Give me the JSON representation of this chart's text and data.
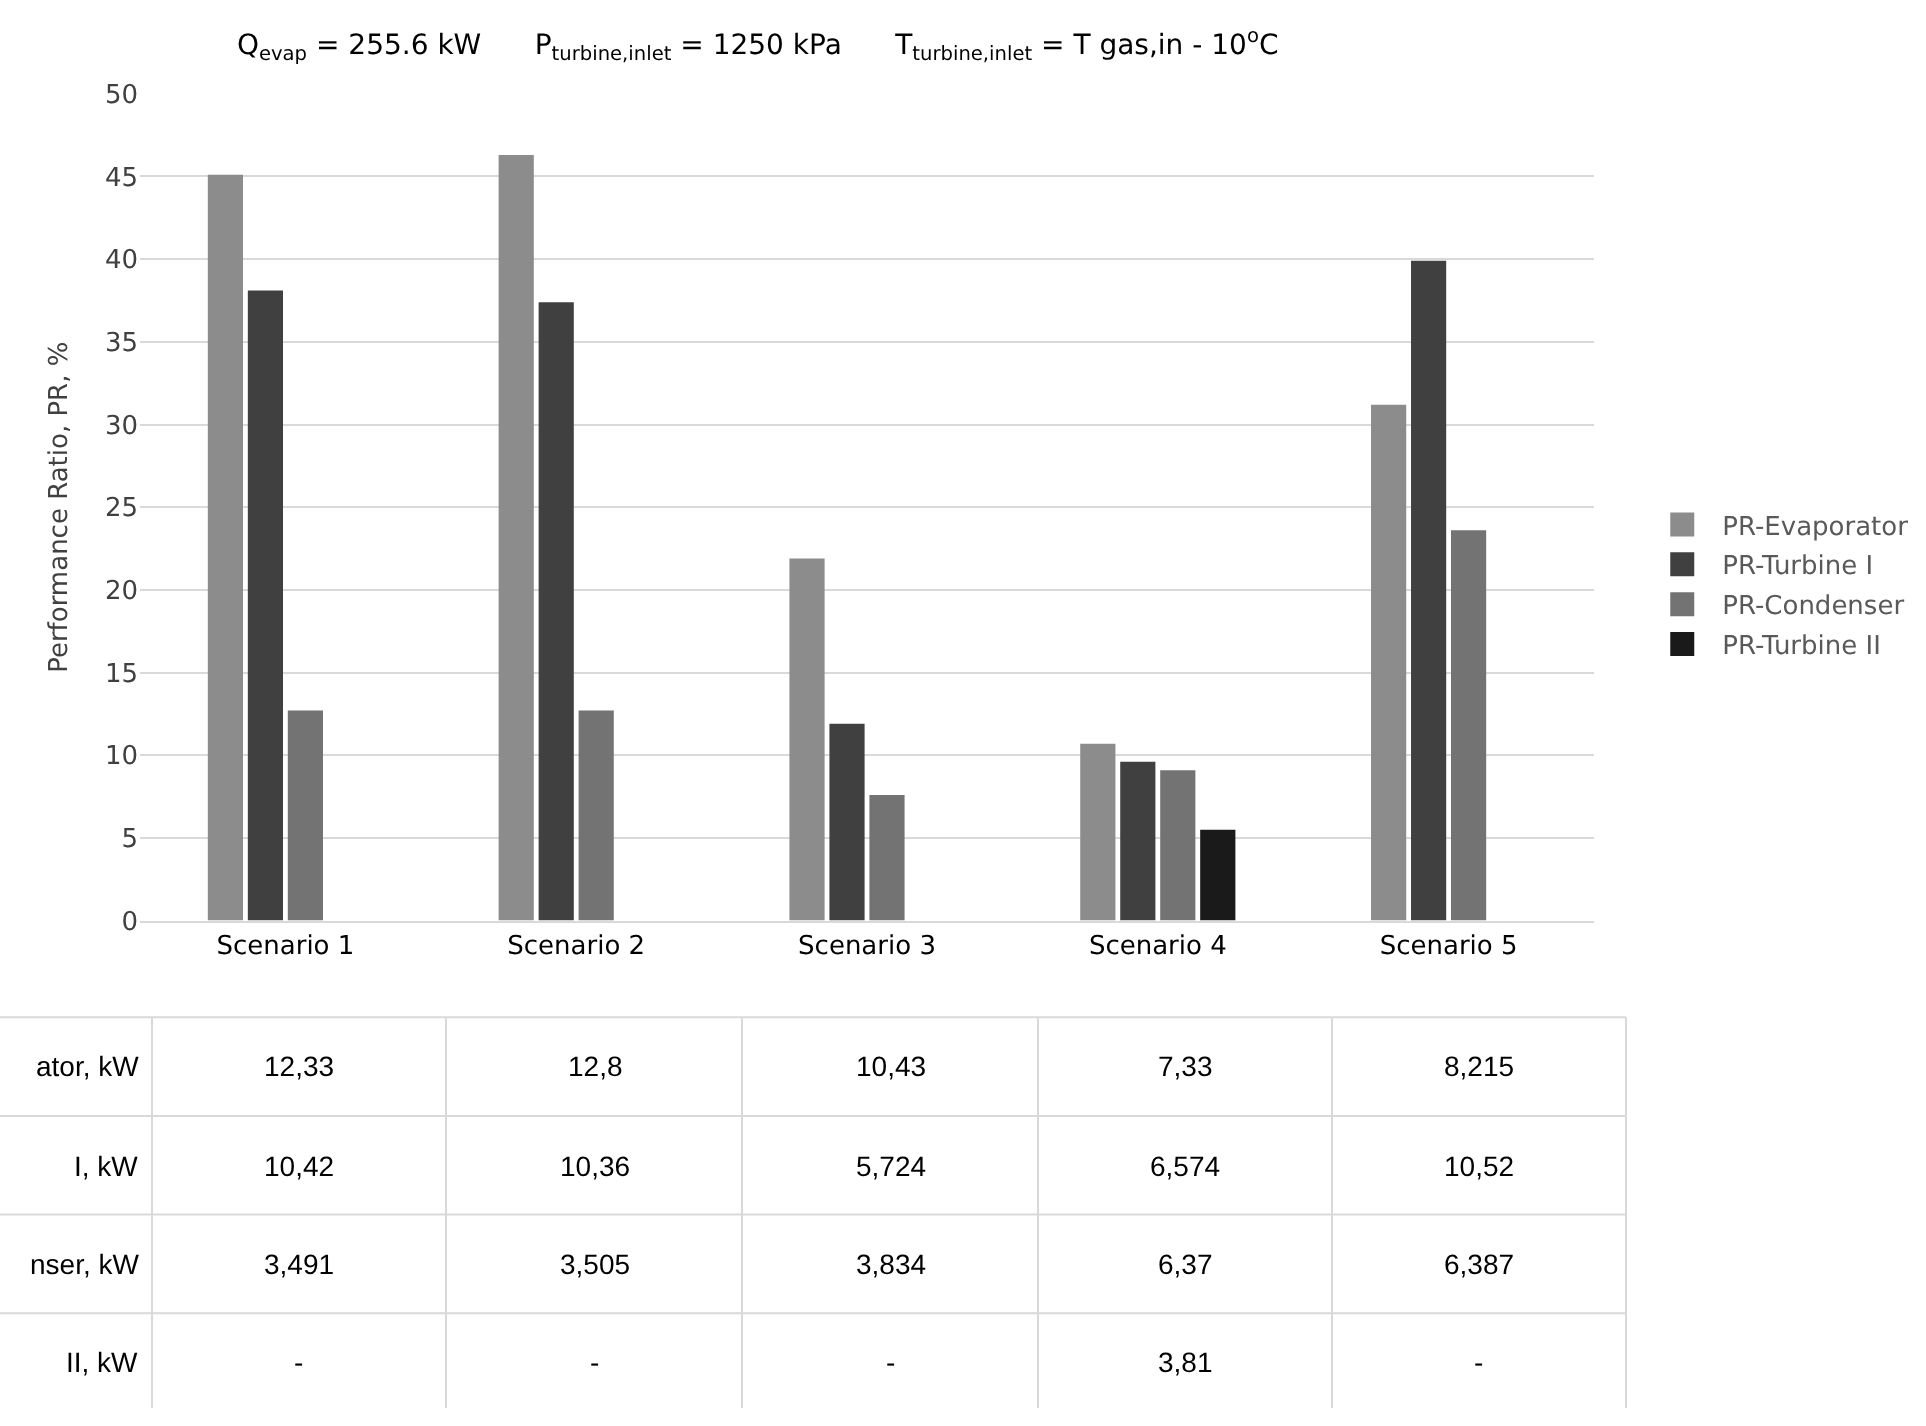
{
  "chart_data": [
    {
      "type": "bar",
      "title": "Q$_{evap}$ = 255.6 kW      P$_{turbine,inlet}$ = 1250 kPa      T$_{turbine,inlet}$ = T gas,in - 10$^{o}$C",
      "ylabel": "Performance Ratio, PR, %",
      "categories": [
        "Scenario 1",
        "Scenario 2",
        "Scenario 3",
        "Scenario 4",
        "Scenario 5"
      ],
      "series": [
        {
          "name": "PR-Evaporator",
          "color": "#8c8c8c",
          "values": [
            45.1,
            46.3,
            21.9,
            10.7,
            31.2
          ]
        },
        {
          "name": "PR-Turbine I",
          "color": "#404040",
          "values": [
            38.1,
            37.4,
            11.9,
            9.6,
            39.9
          ]
        },
        {
          "name": "PR-Condenser",
          "color": "#737373",
          "values": [
            12.7,
            12.7,
            7.6,
            9.1,
            23.6
          ]
        },
        {
          "name": "PR-Turbine II",
          "color": "#1a1a1a",
          "values": [
            null,
            null,
            null,
            5.5,
            null
          ]
        }
      ],
      "ylim": [
        0,
        50
      ],
      "yticks": [
        0,
        5,
        10,
        15,
        20,
        25,
        30,
        35,
        40,
        45,
        50
      ],
      "grid": "y",
      "legend": "right"
    },
    {
      "type": "other",
      "y_categories": [
        "ator, kW",
        "I, kW",
        "nser, kW",
        "II, kW"
      ],
      "cell_labels": [
        [
          "12,33",
          "12,8",
          "10,43",
          "7,33",
          "8,215"
        ],
        [
          "10,42",
          "10,36",
          "5,724",
          "6,574",
          "10,52"
        ],
        [
          "3,491",
          "3,505",
          "3,834",
          "6,37",
          "6,387"
        ],
        [
          "-",
          "-",
          "-",
          "3,81",
          "-"
        ]
      ]
    }
  ]
}
